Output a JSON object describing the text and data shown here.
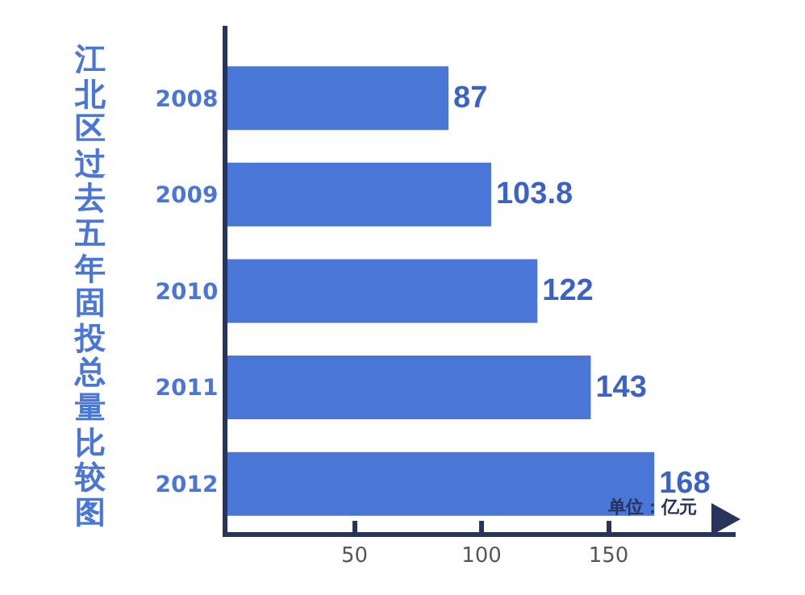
{
  "chart_data": {
    "type": "bar",
    "orientation": "horizontal",
    "title": "江北区过去五年固投总量比较图",
    "xlabel": "单位：亿元",
    "categories": [
      "2008",
      "2009",
      "2010",
      "2011",
      "2012"
    ],
    "values": [
      87,
      103.8,
      122,
      143,
      168
    ],
    "color": "#4a76d8",
    "xlim": [
      0,
      200
    ],
    "xticks": [
      50,
      100,
      150
    ],
    "data_labels": true,
    "grid": false,
    "legend": false
  }
}
